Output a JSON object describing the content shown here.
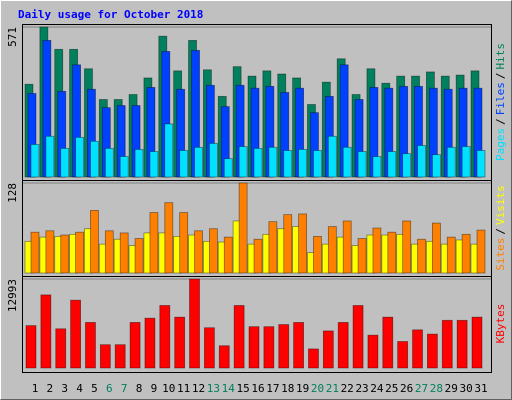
{
  "chart_data": [
    {
      "type": "bar",
      "title": "Daily usage for October 2018",
      "categories": [
        "1",
        "2",
        "3",
        "4",
        "5",
        "6",
        "7",
        "8",
        "9",
        "10",
        "11",
        "12",
        "13",
        "14",
        "15",
        "16",
        "17",
        "18",
        "19",
        "20",
        "21",
        "22",
        "23",
        "24",
        "25",
        "26",
        "27",
        "28",
        "29",
        "30",
        "31"
      ],
      "highlight_indices": [
        5,
        6,
        12,
        13,
        19,
        20,
        26,
        27
      ],
      "highlight_color": "#00805c",
      "legend_separator": "/",
      "ylim": [
        0,
        571
      ],
      "yticks": [
        571
      ],
      "series": [
        {
          "name": "Hits",
          "color": "#00805c",
          "values": [
            353,
            571,
            486,
            486,
            412,
            295,
            295,
            314,
            377,
            536,
            404,
            520,
            408,
            307,
            420,
            384,
            404,
            392,
            377,
            276,
            361,
            450,
            314,
            412,
            357,
            384,
            384,
            400,
            384,
            388,
            404
          ]
        },
        {
          "name": "Files",
          "color": "#0040ff",
          "values": [
            318,
            520,
            326,
            427,
            334,
            264,
            272,
            272,
            341,
            478,
            334,
            482,
            349,
            268,
            349,
            338,
            345,
            322,
            338,
            245,
            307,
            427,
            295,
            341,
            338,
            345,
            345,
            338,
            334,
            338,
            338
          ]
        },
        {
          "name": "Pages",
          "color": "#00e0ff",
          "values": [
            124,
            155,
            109,
            151,
            136,
            109,
            78,
            105,
            97,
            202,
            101,
            113,
            128,
            70,
            116,
            109,
            113,
            101,
            105,
            101,
            155,
            113,
            97,
            78,
            97,
            89,
            120,
            85,
            113,
            116,
            101
          ]
        }
      ]
    },
    {
      "type": "bar",
      "legend_separator": "/",
      "ylim": [
        0,
        128
      ],
      "yticks": [
        128
      ],
      "series": [
        {
          "name": "Visits",
          "color": "#ffff00",
          "values": [
            45,
            51,
            52,
            55,
            63,
            41,
            48,
            39,
            57,
            57,
            52,
            54,
            45,
            44,
            74,
            41,
            55,
            63,
            66,
            29,
            41,
            51,
            39,
            54,
            54,
            55,
            41,
            45,
            41,
            47,
            41
          ]
        },
        {
          "name": "Sites",
          "color": "#ff8000",
          "values": [
            58,
            60,
            54,
            58,
            89,
            60,
            57,
            49,
            86,
            100,
            86,
            60,
            63,
            51,
            128,
            48,
            73,
            83,
            84,
            52,
            66,
            74,
            49,
            64,
            58,
            74,
            48,
            71,
            51,
            55,
            61
          ]
        }
      ]
    },
    {
      "type": "bar",
      "ylim": [
        0,
        12993
      ],
      "yticks": [
        12993
      ],
      "series": [
        {
          "name": "KBytes",
          "color": "#ff0000",
          "values": [
            6188,
            10674,
            5724,
            9901,
            6652,
            3403,
            3403,
            6652,
            7271,
            9127,
            7425,
            12993,
            5878,
            3248,
            9127,
            6033,
            6033,
            6343,
            6652,
            2785,
            5414,
            6652,
            9127,
            4796,
            7425,
            3867,
            5569,
            4950,
            6961,
            6961,
            7425
          ]
        }
      ]
    }
  ]
}
